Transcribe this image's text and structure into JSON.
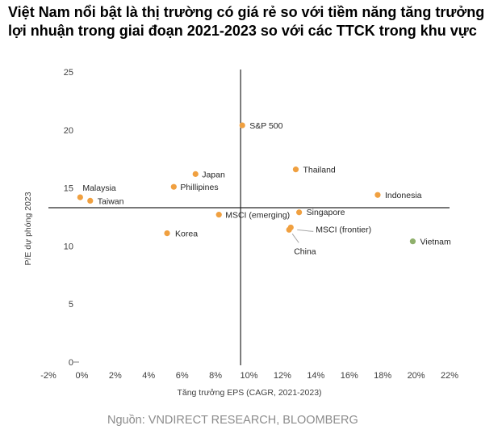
{
  "title": "Việt Nam nổi bật là thị trường có giá rẻ so với tiềm năng tăng trưởng lợi nhuận trong giai đoạn 2021-2023 so với các TTCK trong khu vực",
  "source": "Nguồn: VNDIRECT RESEARCH, BLOOMBERG",
  "chart_data": {
    "type": "scatter",
    "xlabel": "Tăng trưởng EPS (CAGR, 2021-2023)",
    "ylabel": "P/E dự phóng 2023",
    "xlim": [
      -2,
      22
    ],
    "ylim": [
      0,
      25
    ],
    "x_ticks": [
      "-2%",
      "0%",
      "2%",
      "4%",
      "6%",
      "8%",
      "10%",
      "12%",
      "14%",
      "16%",
      "18%",
      "20%",
      "22%"
    ],
    "y_ticks": [
      "0",
      "5",
      "10",
      "15",
      "20",
      "25"
    ],
    "reference_lines": {
      "x": 9.5,
      "y": 13.3
    },
    "colors": {
      "default": "#f0a040",
      "highlight": "#8fb06c",
      "reference_line": "#262626"
    },
    "points": [
      {
        "label": "S&P 500",
        "x": 9.6,
        "y": 20.4
      },
      {
        "label": "Thailand",
        "x": 12.8,
        "y": 16.6
      },
      {
        "label": "Japan",
        "x": 6.8,
        "y": 16.2
      },
      {
        "label": "Phillipines",
        "x": 5.5,
        "y": 15.1
      },
      {
        "label": "Malaysia",
        "x": -0.1,
        "y": 14.2
      },
      {
        "label": "Taiwan",
        "x": 0.5,
        "y": 13.9
      },
      {
        "label": "Indonesia",
        "x": 17.7,
        "y": 14.4
      },
      {
        "label": "Singapore",
        "x": 13.0,
        "y": 12.9
      },
      {
        "label": "MSCI (emerging)",
        "x": 8.2,
        "y": 12.7
      },
      {
        "label": "Korea",
        "x": 5.1,
        "y": 11.1
      },
      {
        "label": "MSCI (frontier)",
        "x": 12.5,
        "y": 11.6
      },
      {
        "label": "China",
        "x": 12.4,
        "y": 11.4
      },
      {
        "label": "Vietnam",
        "x": 19.8,
        "y": 10.4,
        "highlight": true
      }
    ]
  }
}
